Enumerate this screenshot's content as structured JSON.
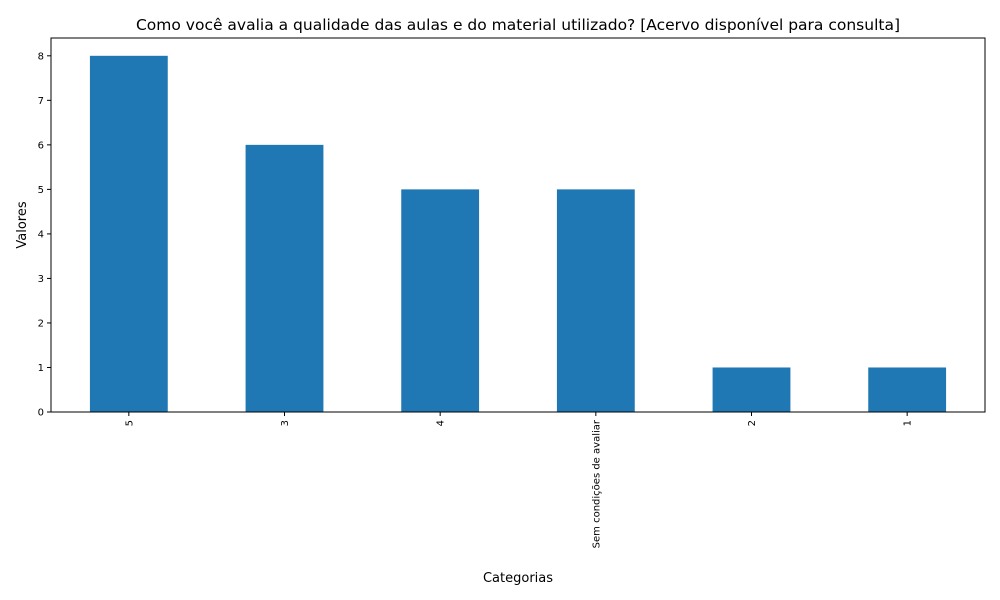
{
  "chart_data": {
    "type": "bar",
    "title": "Como você avalia a qualidade das aulas e do material utilizado?  [Acervo disponível para consulta]",
    "xlabel": "Categorias",
    "ylabel": "Valores",
    "categories": [
      "5",
      "3",
      "4",
      "Sem condições de avaliar",
      "2",
      "1"
    ],
    "values": [
      8,
      6,
      5,
      5,
      1,
      1
    ],
    "ylim": [
      0,
      8.4
    ],
    "yticks": [
      0,
      1,
      2,
      3,
      4,
      5,
      6,
      7,
      8
    ],
    "bar_color": "#1f77b4",
    "grid": false,
    "legend": "none"
  }
}
